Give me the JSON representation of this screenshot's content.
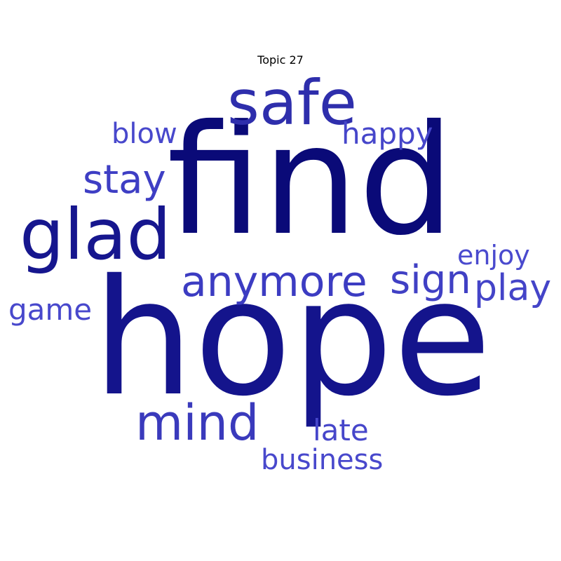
{
  "title": "Topic 27",
  "words": [
    {
      "text": "find",
      "color": "#0a0a78",
      "weight": 1.0
    },
    {
      "text": "hope",
      "color": "#14148c",
      "weight": 0.93
    },
    {
      "text": "glad",
      "color": "#16168e",
      "weight": 0.52
    },
    {
      "text": "safe",
      "color": "#2e2eac",
      "weight": 0.46
    },
    {
      "text": "mind",
      "color": "#3a3abc",
      "weight": 0.4
    },
    {
      "text": "anymore",
      "color": "#3c3cc2",
      "weight": 0.34
    },
    {
      "text": "sign",
      "color": "#4040c4",
      "weight": 0.31
    },
    {
      "text": "stay",
      "color": "#3e3ec4",
      "weight": 0.31
    },
    {
      "text": "play",
      "color": "#4444c8",
      "weight": 0.3
    },
    {
      "text": "happy",
      "color": "#4646ca",
      "weight": 0.24
    },
    {
      "text": "late",
      "color": "#4646ca",
      "weight": 0.24
    },
    {
      "text": "game",
      "color": "#4848cc",
      "weight": 0.24
    },
    {
      "text": "blow",
      "color": "#4848cc",
      "weight": 0.23
    },
    {
      "text": "business",
      "color": "#4848cc",
      "weight": 0.23
    },
    {
      "text": "enjoy",
      "color": "#4a4ace",
      "weight": 0.22
    }
  ]
}
